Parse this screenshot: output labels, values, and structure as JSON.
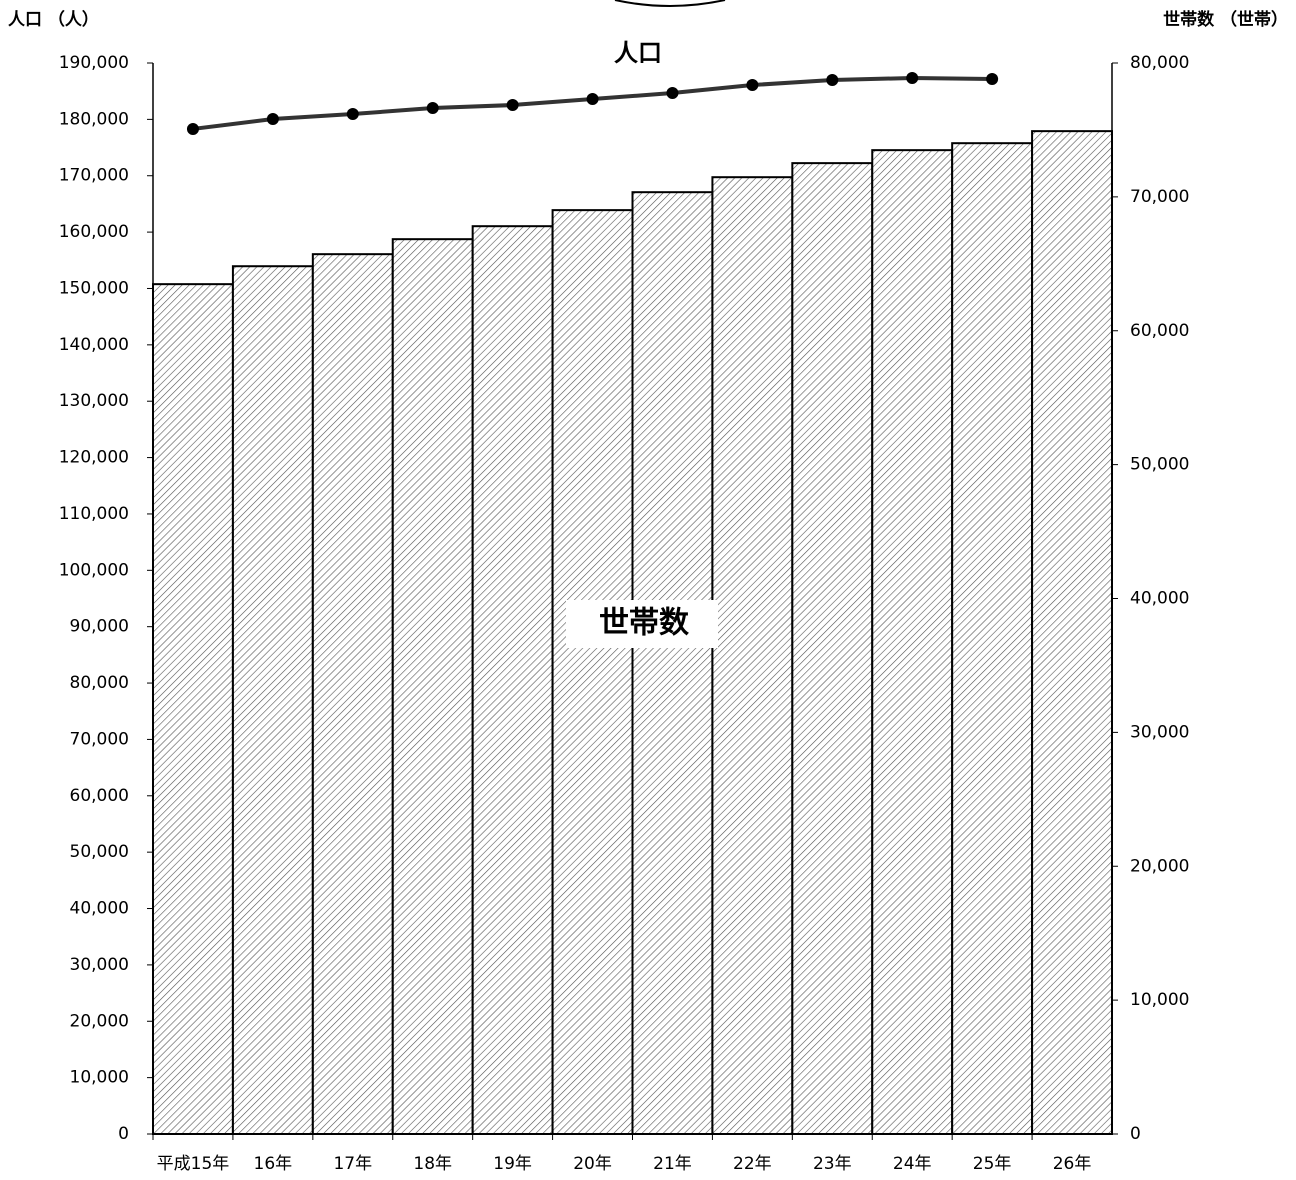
{
  "chart_data": {
    "type": "bar",
    "y_label": "人口 （人）",
    "y2_label": "世帯数 （世帯）",
    "categories": [
      "平成15年",
      "16年",
      "17年",
      "18年",
      "19年",
      "20年",
      "21年",
      "22年",
      "23年",
      "24年",
      "25年",
      "26年"
    ],
    "series": [
      {
        "name": "世帯数",
        "type": "bar",
        "axis": "y2",
        "color": "#555555",
        "values": [
          63480,
          64820,
          65720,
          66840,
          67810,
          69010,
          70350,
          71470,
          72520,
          73490,
          74010,
          74910
        ]
      },
      {
        "name": "人口",
        "type": "line",
        "color": "#333333",
        "values": [
          178300,
          180060,
          180950,
          182010,
          182540,
          183610,
          184670,
          186090,
          186980,
          187340,
          187160,
          null
        ]
      }
    ],
    "ylim": [
      0,
      190000
    ],
    "yticks": [
      0,
      {
        "value": 10000,
        "label": "10,000"
      },
      {
        "value": 20000,
        "label": "20,000"
      },
      {
        "value": 30000,
        "label": "30,000"
      },
      {
        "value": 40000,
        "label": "40,000"
      },
      {
        "value": 50000,
        "label": "50,000"
      },
      {
        "value": 60000,
        "label": "60,000"
      },
      {
        "value": 70000,
        "label": "70,000"
      },
      {
        "value": 80000,
        "label": "80,000"
      },
      {
        "value": 90000,
        "label": "90,000"
      },
      {
        "value": 100000,
        "label": "100,000"
      },
      {
        "value": 110000,
        "label": "110,000"
      },
      {
        "value": 120000,
        "label": "120,000"
      },
      {
        "value": 130000,
        "label": "130,000"
      },
      {
        "value": 140000,
        "label": "140,000"
      },
      {
        "value": 150000,
        "label": "150,000"
      },
      {
        "value": 160000,
        "label": "160,000"
      },
      {
        "value": 170000,
        "label": "170,000"
      },
      {
        "value": 180000,
        "label": "180,000"
      },
      {
        "value": 190000,
        "label": "190,000"
      }
    ],
    "y2lim": [
      0,
      80000
    ],
    "y2ticks": [
      0,
      {
        "value": 10000,
        "label": "10,000"
      },
      {
        "value": 20000,
        "label": "20,000"
      },
      {
        "value": 30000,
        "label": "30,000"
      },
      {
        "value": 40000,
        "label": "40,000"
      },
      {
        "value": 50000,
        "label": "50,000"
      },
      {
        "value": 60000,
        "label": "60,000"
      },
      {
        "value": 70000,
        "label": "70,000"
      },
      {
        "value": 80000,
        "label": "80,000"
      }
    ]
  }
}
